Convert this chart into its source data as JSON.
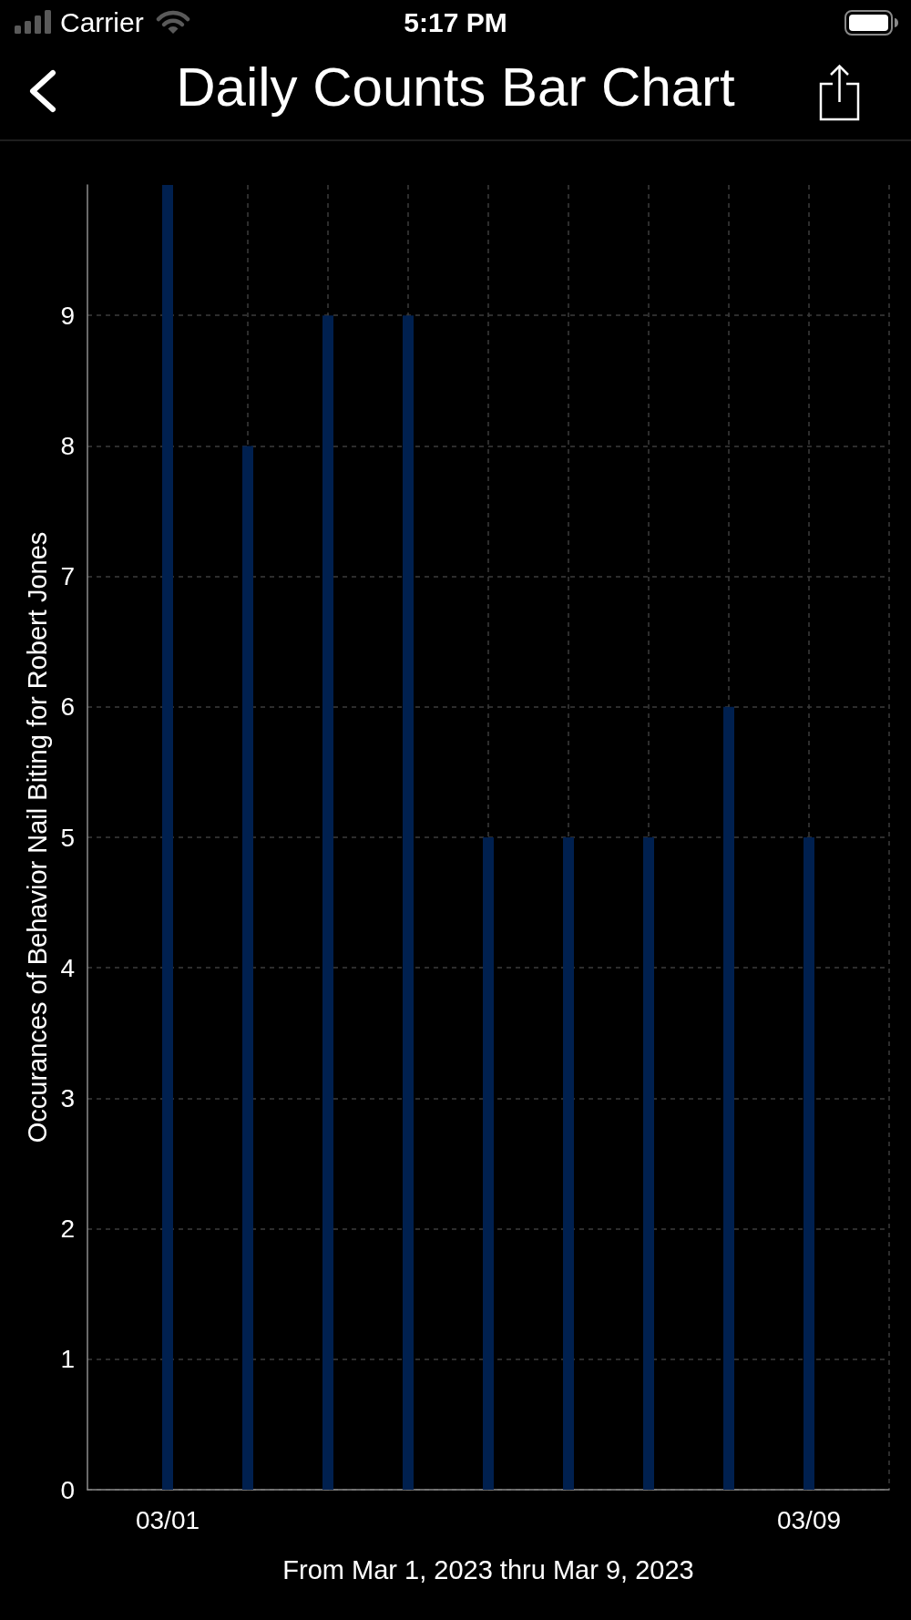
{
  "chart_data": {
    "type": "bar",
    "title": "Daily Counts Bar Chart",
    "xlabel": "From Mar 1, 2023 thru Mar 9, 2023",
    "ylabel": "Occurances of Behavior Nail Biting for Robert Jones",
    "annotations": [
      "Carrier",
      "5:17 PM"
    ],
    "x": [
      "2023-03-01",
      "2023-03-02",
      "2023-03-03",
      "2023-03-04",
      "2023-03-05",
      "2023-03-06",
      "2023-03-07",
      "2023-03-08",
      "2023-03-09"
    ],
    "values": [
      10,
      8,
      9,
      9,
      5,
      5,
      5,
      6,
      5
    ],
    "color": "#00204f",
    "xlim": [
      "2023-02-28",
      "2023-03-10"
    ],
    "xticks": [
      {
        "value": "2023-03-01",
        "label": "03/01"
      },
      {
        "value": "2023-03-02",
        "label": null
      },
      {
        "value": "2023-03-03",
        "label": null
      },
      {
        "value": "2023-03-04",
        "label": null
      },
      {
        "value": "2023-03-05",
        "label": null
      },
      {
        "value": "2023-03-06",
        "label": null
      },
      {
        "value": "2023-03-07",
        "label": null
      },
      {
        "value": "2023-03-08",
        "label": null
      },
      {
        "value": "2023-03-09",
        "label": "03/09"
      },
      {
        "value": "2023-03-10",
        "label": null
      }
    ],
    "ylim": [
      0,
      10
    ],
    "yticks": [
      0,
      1,
      2,
      3,
      4,
      5,
      6,
      7,
      8,
      9
    ],
    "grid": true
  }
}
